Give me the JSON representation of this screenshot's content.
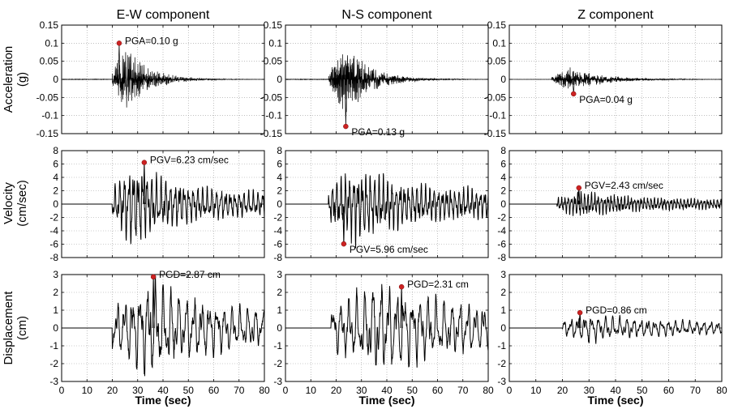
{
  "figure": {
    "column_titles": [
      "E-W component",
      "N-S component",
      "Z component"
    ],
    "row_ylabels": [
      [
        "Acceleration",
        "(g)"
      ],
      [
        "Velocity",
        "(cm/sec)"
      ],
      [
        "Displacement",
        "(cm)"
      ]
    ],
    "xlabel": "Time (sec)"
  },
  "axes": {
    "x": {
      "lim": [
        0,
        80
      ],
      "ticks": [
        0,
        10,
        20,
        30,
        40,
        50,
        60,
        70,
        80
      ],
      "tick_labels": [
        "0",
        "10",
        "20",
        "30",
        "40",
        "50",
        "60",
        "70",
        "80"
      ]
    },
    "rows": [
      {
        "quantity": "acceleration",
        "lim": [
          -0.15,
          0.15
        ],
        "ticks": [
          -0.15,
          -0.1,
          -0.05,
          0,
          0.05,
          0.1,
          0.15
        ],
        "tick_labels": [
          "-0.15",
          "-0.1",
          "-0.05",
          "0",
          "0.05",
          "0.1",
          "0.15"
        ]
      },
      {
        "quantity": "velocity",
        "lim": [
          -8,
          8
        ],
        "ticks": [
          -8,
          -6,
          -4,
          -2,
          0,
          2,
          4,
          6,
          8
        ],
        "tick_labels": [
          "-8",
          "-6",
          "-4",
          "-2",
          "0",
          "2",
          "4",
          "6",
          "8"
        ]
      },
      {
        "quantity": "displacement",
        "lim": [
          -3,
          3
        ],
        "ticks": [
          -3,
          -2,
          -1,
          0,
          1,
          2,
          3
        ],
        "tick_labels": [
          "-3",
          "-2",
          "-1",
          "0",
          "1",
          "2",
          "3"
        ]
      }
    ],
    "grid": "dotted"
  },
  "chart_data": [
    {
      "type": "line",
      "component": "E-W",
      "quantity": "Acceleration",
      "xlabel": "",
      "ylabel": "Acceleration (g)",
      "xlim": [
        0,
        80
      ],
      "ylim": [
        -0.15,
        0.15
      ],
      "series": [
        {
          "onset": 20,
          "peak_time": 25,
          "amp": 0.05,
          "decay": 9,
          "freq": 3.1,
          "seed": 11
        }
      ],
      "peak": {
        "t": 22.7,
        "v": 0.1,
        "label": "PGA=0.10 g",
        "color": "#cc2222"
      }
    },
    {
      "type": "line",
      "component": "N-S",
      "quantity": "Acceleration",
      "xlabel": "",
      "ylabel": "",
      "xlim": [
        0,
        80
      ],
      "ylim": [
        -0.15,
        0.15
      ],
      "series": [
        {
          "onset": 17,
          "peak_time": 24,
          "amp": 0.05,
          "decay": 10,
          "freq": 3.3,
          "seed": 23
        }
      ],
      "peak": {
        "t": 23.8,
        "v": -0.13,
        "label": "PGA=0.13 g",
        "color": "#cc2222"
      }
    },
    {
      "type": "line",
      "component": "Z",
      "quantity": "Acceleration",
      "xlabel": "",
      "ylabel": "",
      "xlim": [
        0,
        80
      ],
      "ylim": [
        -0.15,
        0.15
      ],
      "series": [
        {
          "onset": 16,
          "peak_time": 22,
          "amp": 0.018,
          "decay": 13,
          "freq": 3.8,
          "seed": 37
        }
      ],
      "peak": {
        "t": 24.2,
        "v": -0.04,
        "label": "PGA=0.04 g",
        "color": "#cc2222"
      }
    },
    {
      "type": "line",
      "component": "E-W",
      "quantity": "Velocity",
      "xlabel": "",
      "ylabel": "Velocity (cm/sec)",
      "xlim": [
        0,
        80
      ],
      "ylim": [
        -8,
        8
      ],
      "series": [
        {
          "onset": 20,
          "peak_time": 28,
          "amp": 3.2,
          "decay": 18,
          "freq": 0.55,
          "tail": 1.1,
          "seed": 5
        }
      ],
      "peak": {
        "t": 32.6,
        "v": 6.23,
        "label": "PGV=6.23 cm/sec",
        "color": "#cc2222"
      }
    },
    {
      "type": "line",
      "component": "N-S",
      "quantity": "Velocity",
      "xlabel": "",
      "ylabel": "",
      "xlim": [
        0,
        80
      ],
      "ylim": [
        -8,
        8
      ],
      "series": [
        {
          "onset": 17,
          "peak_time": 28,
          "amp": 2.6,
          "decay": 20,
          "freq": 0.6,
          "tail": 1.3,
          "seed": 19
        }
      ],
      "peak": {
        "t": 23,
        "v": -5.96,
        "label": "PGV=5.96 cm/sec",
        "color": "#cc2222"
      }
    },
    {
      "type": "line",
      "component": "Z",
      "quantity": "Velocity",
      "xlabel": "",
      "ylabel": "",
      "xlim": [
        0,
        80
      ],
      "ylim": [
        -8,
        8
      ],
      "series": [
        {
          "onset": 18,
          "peak_time": 27,
          "amp": 0.9,
          "decay": 22,
          "freq": 0.8,
          "tail": 0.45,
          "seed": 41
        }
      ],
      "peak": {
        "t": 26.2,
        "v": 2.43,
        "label": "PGV=2.43 cm/sec",
        "color": "#cc2222"
      }
    },
    {
      "type": "line",
      "component": "E-W",
      "quantity": "Displacement",
      "xlabel": "Time (sec)",
      "ylabel": "Displacement (cm)",
      "xlim": [
        0,
        80
      ],
      "ylim": [
        -3,
        3
      ],
      "series": [
        {
          "onset": 20,
          "peak_time": 36,
          "amp": 1.3,
          "decay": 20,
          "freq": 0.33,
          "tail": 0.6,
          "seed": 7
        }
      ],
      "peak": {
        "t": 36.2,
        "v": 2.87,
        "label": "PGD=2.87 cm",
        "color": "#cc2222"
      }
    },
    {
      "type": "line",
      "component": "N-S",
      "quantity": "Displacement",
      "xlabel": "Time (sec)",
      "ylabel": "",
      "xlim": [
        0,
        80
      ],
      "ylim": [
        -3,
        3
      ],
      "series": [
        {
          "onset": 18,
          "peak_time": 38,
          "amp": 1.15,
          "decay": 26,
          "freq": 0.32,
          "tail": 0.65,
          "seed": 29
        }
      ],
      "peak": {
        "t": 45.8,
        "v": 2.31,
        "label": "PGD=2.31 cm",
        "color": "#cc2222"
      }
    },
    {
      "type": "line",
      "component": "Z",
      "quantity": "Displacement",
      "xlabel": "Time (sec)",
      "ylabel": "",
      "xlim": [
        0,
        80
      ],
      "ylim": [
        -3,
        3
      ],
      "series": [
        {
          "onset": 20,
          "peak_time": 30,
          "amp": 0.35,
          "decay": 25,
          "freq": 0.38,
          "tail": 0.2,
          "seed": 53
        }
      ],
      "peak": {
        "t": 26.6,
        "v": 0.86,
        "label": "PGD=0.86 cm",
        "color": "#cc2222"
      }
    }
  ]
}
